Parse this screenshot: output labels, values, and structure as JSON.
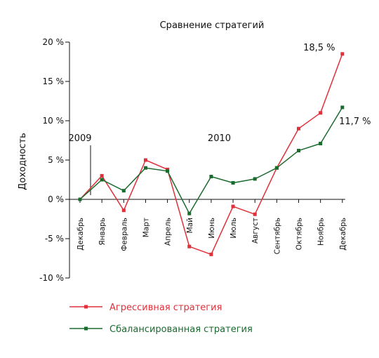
{
  "chart_data": {
    "type": "line",
    "title": "Сравнение стратегий",
    "ylabel": "Доходность",
    "xlabel": "",
    "categories": [
      "Декабрь",
      "Январь",
      "Февраль",
      "Март",
      "Апрель",
      "Май",
      "Июнь",
      "Июль",
      "Август",
      "Сентябрь",
      "Октябрь",
      "Ноябрь",
      "Декабрь"
    ],
    "ylim": [
      -10,
      20
    ],
    "yticks": [
      20,
      15,
      10,
      5,
      0,
      -5,
      -10
    ],
    "ytick_labels": [
      "20 %",
      "15 %",
      "10 %",
      "5 %",
      "0 %",
      "-5 %",
      "-10 %"
    ],
    "years": [
      {
        "label": "2009",
        "index": 0
      },
      {
        "label": "2010",
        "index": 6.5
      }
    ],
    "series": [
      {
        "name": "Агрессивная стратегия",
        "color": "#e0303a",
        "values": [
          0,
          3.0,
          -1.4,
          5.0,
          3.8,
          -6.0,
          -7.0,
          -0.9,
          -1.9,
          4.0,
          9.0,
          11.0,
          18.5
        ]
      },
      {
        "name": "Сбалансированная стратегия",
        "color": "#1a6b2e",
        "values": [
          0,
          2.5,
          1.1,
          4.0,
          3.6,
          -1.8,
          2.9,
          2.1,
          2.6,
          4.0,
          6.2,
          7.1,
          11.7
        ]
      }
    ],
    "annotations": [
      {
        "text": "18,5 %",
        "series": 0,
        "index": 12
      },
      {
        "text": "11,7 %",
        "series": 1,
        "index": 12
      }
    ],
    "grid": false,
    "legend": "bottom"
  }
}
